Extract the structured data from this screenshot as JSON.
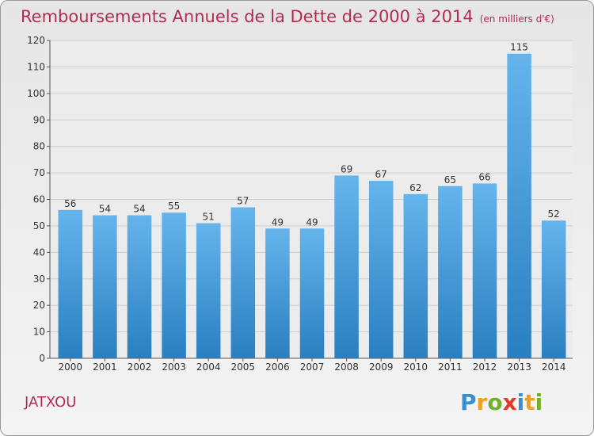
{
  "title": "Remboursements Annuels de la Dette de 2000 à 2014",
  "unit": "(en milliers d'€)",
  "place": "JATXOU",
  "logo": {
    "letters": [
      "P",
      "r",
      "o",
      "x",
      "i",
      "t",
      "i"
    ],
    "colors": [
      "#3a8fd1",
      "#f0a020",
      "#72b02c",
      "#e03a2a",
      "#3a8fd1",
      "#f0a020",
      "#72b02c"
    ]
  },
  "colors": {
    "bar_light": "#65b4ec",
    "bar_dark": "#2a7fc0",
    "title": "#b42b52",
    "grid": "#cfcfcf"
  },
  "chart_data": {
    "type": "bar",
    "categories": [
      "2000",
      "2001",
      "2002",
      "2003",
      "2004",
      "2005",
      "2006",
      "2007",
      "2008",
      "2009",
      "2010",
      "2011",
      "2012",
      "2013",
      "2014"
    ],
    "values": [
      56,
      54,
      54,
      55,
      51,
      57,
      49,
      49,
      69,
      67,
      62,
      65,
      66,
      115,
      52
    ],
    "yticks": [
      0,
      10,
      20,
      30,
      40,
      50,
      60,
      70,
      80,
      90,
      100,
      110,
      120
    ],
    "ylim": [
      0,
      120
    ],
    "grid": true,
    "legend": "none"
  }
}
